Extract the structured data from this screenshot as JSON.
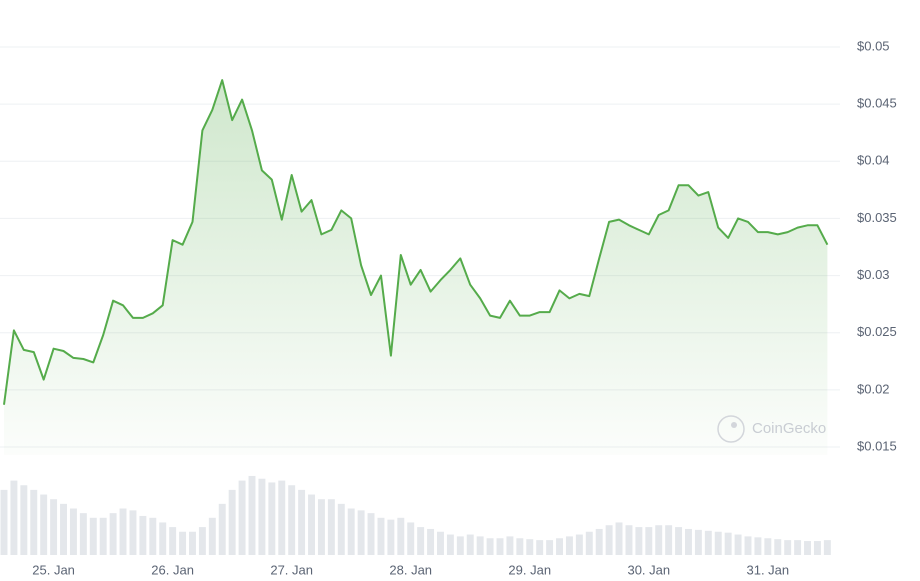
{
  "chart_data": [
    {
      "type": "line",
      "watermark": "CoinGecko",
      "color": "#55ab4b",
      "grid": true,
      "categories": [
        null,
        null,
        null,
        null,
        null,
        "25. Jan",
        null,
        null,
        null,
        null,
        null,
        null,
        null,
        null,
        null,
        null,
        null,
        "26. Jan",
        null,
        null,
        null,
        null,
        null,
        null,
        null,
        null,
        null,
        null,
        null,
        "27. Jan",
        null,
        null,
        null,
        null,
        null,
        null,
        null,
        null,
        null,
        null,
        null,
        "28. Jan",
        null,
        null,
        null,
        null,
        null,
        null,
        null,
        null,
        null,
        null,
        null,
        "29. Jan",
        null,
        null,
        null,
        null,
        null,
        null,
        null,
        null,
        null,
        null,
        null,
        "30. Jan",
        null,
        null,
        null,
        null,
        null,
        null,
        null,
        null,
        null,
        null,
        null,
        "31. Jan",
        null,
        null,
        null,
        null,
        null,
        null
      ],
      "values": [
        0.0187,
        0.0252,
        0.0235,
        0.0233,
        0.0209,
        0.0236,
        0.0234,
        0.0228,
        0.0227,
        0.0224,
        0.0248,
        0.0278,
        0.0274,
        0.0263,
        0.0263,
        0.0267,
        0.0274,
        0.0331,
        0.0327,
        0.0347,
        0.0427,
        0.0445,
        0.0471,
        0.0436,
        0.0454,
        0.0427,
        0.0392,
        0.0384,
        0.0349,
        0.0388,
        0.0356,
        0.0366,
        0.0336,
        0.034,
        0.0357,
        0.035,
        0.0309,
        0.0283,
        0.03,
        0.023,
        0.0318,
        0.0292,
        0.0305,
        0.0286,
        0.0296,
        0.0305,
        0.0315,
        0.0292,
        0.028,
        0.0265,
        0.0263,
        0.0278,
        0.0265,
        0.0265,
        0.0268,
        0.0268,
        0.0287,
        0.028,
        0.0284,
        0.0282,
        0.0315,
        0.0347,
        0.0349,
        0.0344,
        0.034,
        0.0336,
        0.0353,
        0.0357,
        0.0379,
        0.0379,
        0.037,
        0.0373,
        0.0342,
        0.0333,
        0.035,
        0.0347,
        0.0338,
        0.0338,
        0.0336,
        0.0338,
        0.0342,
        0.0344,
        0.0344,
        0.0327
      ],
      "ylim": [
        0.015,
        0.05
      ],
      "yticks": [
        {
          "value": 0.05,
          "label": "$0.05"
        },
        {
          "value": 0.045,
          "label": "$0.045"
        },
        {
          "value": 0.04,
          "label": "$0.04"
        },
        {
          "value": 0.035,
          "label": "$0.035"
        },
        {
          "value": 0.03,
          "label": "$0.03"
        },
        {
          "value": 0.025,
          "label": "$0.025"
        },
        {
          "value": 0.02,
          "label": "$0.02"
        },
        {
          "value": 0.015,
          "label": "$0.015"
        }
      ]
    },
    {
      "type": "bar",
      "color": "#e4e7eb",
      "values": [
        70,
        80,
        75,
        70,
        65,
        60,
        55,
        50,
        45,
        40,
        40,
        45,
        50,
        48,
        42,
        40,
        35,
        30,
        25,
        25,
        30,
        40,
        55,
        70,
        80,
        85,
        82,
        78,
        80,
        75,
        70,
        65,
        60,
        60,
        55,
        50,
        48,
        45,
        40,
        38,
        40,
        35,
        30,
        28,
        25,
        22,
        20,
        22,
        20,
        18,
        18,
        20,
        18,
        17,
        16,
        16,
        18,
        20,
        22,
        25,
        28,
        32,
        35,
        32,
        30,
        30,
        32,
        32,
        30,
        28,
        27,
        26,
        25,
        24,
        22,
        20,
        19,
        18,
        17,
        16,
        16,
        15,
        15,
        16
      ],
      "ylim": [
        0,
        100
      ]
    }
  ]
}
